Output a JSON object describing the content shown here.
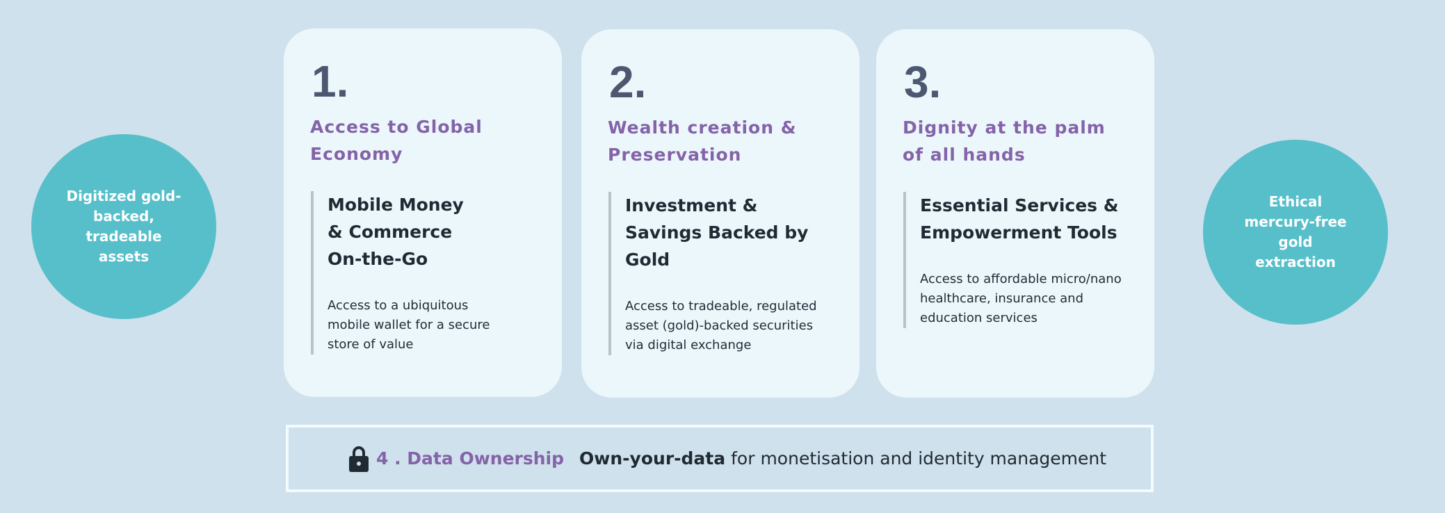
{
  "left_circle": {
    "text": "Digitized gold-backed, tradeable assets"
  },
  "right_circle": {
    "text": "Ethical mercury-free gold extraction"
  },
  "cards": [
    {
      "number": "1.",
      "title": "Access to Global Economy",
      "subtitle": "Mobile Money & Commerce On-the-Go",
      "description": "Access to a ubiquitous mobile wallet for a secure store of value"
    },
    {
      "number": "2.",
      "title": "Wealth creation & Preservation",
      "subtitle": "Investment & Savings Backed by Gold",
      "description": "Access to tradeable, regulated asset (gold)-backed securities via digital exchange"
    },
    {
      "number": "3.",
      "title": "Dignity at the palm of all hands",
      "subtitle": "Essential Services & Empowerment Tools",
      "description": "Access to affordable micro/nano healthcare, insurance and education services"
    }
  ],
  "data_ownership": {
    "icon": "lock-icon",
    "title": "4 . Data Ownership",
    "emphasis": "Own-your-data",
    "text": "for monetisation and identity management"
  },
  "colors": {
    "background": "#cfe1ec",
    "card": "#ecf7fc",
    "circle": "#56bfca",
    "accent": "#8463a8",
    "number": "#4d5870"
  }
}
